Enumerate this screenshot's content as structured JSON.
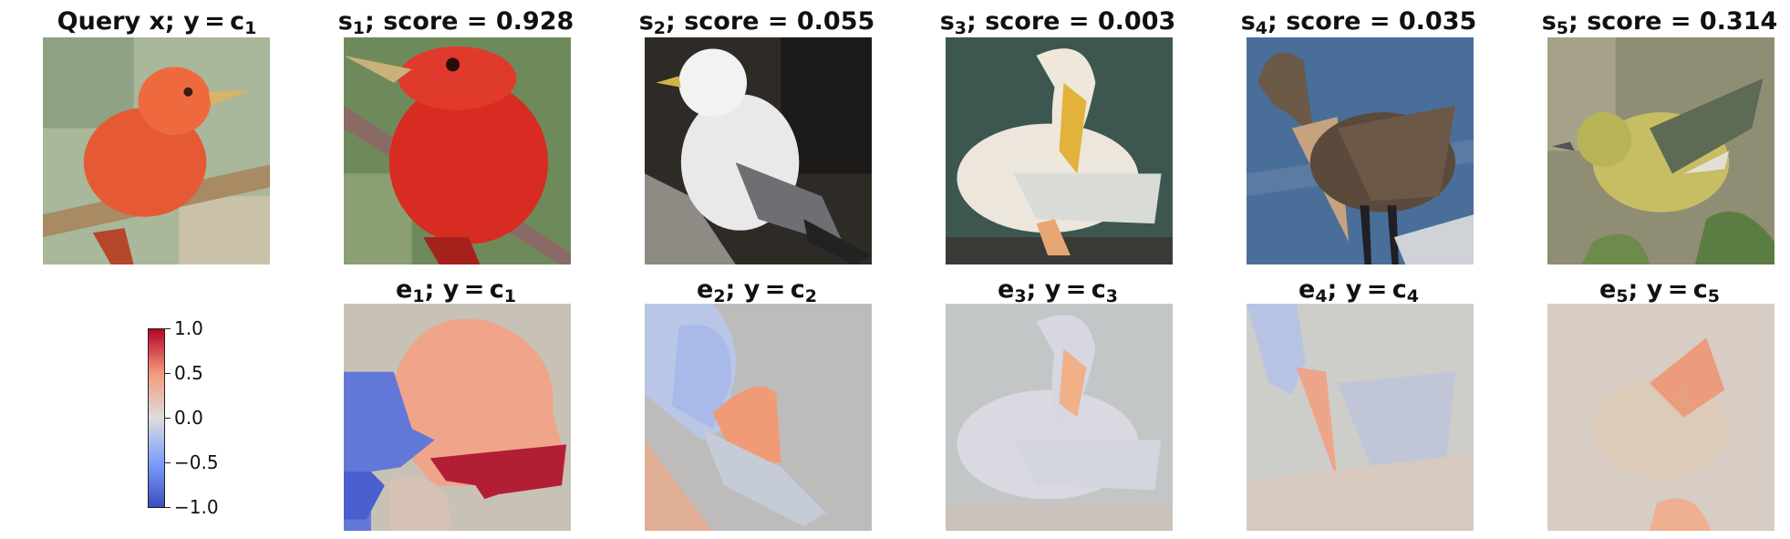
{
  "query": {
    "label": "Query x; y = c",
    "class_index": "1",
    "subject": "red bird on branch"
  },
  "samples": [
    {
      "symbol": "s",
      "index": "1",
      "score_text": "; score = 0.928",
      "score": 0.928,
      "subject": "red tanager"
    },
    {
      "symbol": "s",
      "index": "2",
      "score_text": "; score = 0.055",
      "score": 0.055,
      "subject": "white gull"
    },
    {
      "symbol": "s",
      "index": "3",
      "score_text": "; score = 0.003",
      "score": 0.003,
      "subject": "white pelican preening"
    },
    {
      "symbol": "s",
      "index": "4",
      "score_text": "; score = 0.035",
      "score": 0.035,
      "subject": "brown pelican"
    },
    {
      "symbol": "s",
      "index": "5",
      "score_text": "; score = 0.314",
      "score": 0.314,
      "subject": "yellow warbler"
    }
  ],
  "explanations": [
    {
      "symbol": "e",
      "index": "1",
      "class_text": "; y = c",
      "class_index": "1"
    },
    {
      "symbol": "e",
      "index": "2",
      "class_text": "; y = c",
      "class_index": "2"
    },
    {
      "symbol": "e",
      "index": "3",
      "class_text": "; y = c",
      "class_index": "3"
    },
    {
      "symbol": "e",
      "index": "4",
      "class_text": "; y = c",
      "class_index": "4"
    },
    {
      "symbol": "e",
      "index": "5",
      "class_text": "; y = c",
      "class_index": "5"
    }
  ],
  "colorbar": {
    "colormap": "coolwarm",
    "range": [
      -1.0,
      1.0
    ],
    "ticks": [
      "1.0",
      "0.5",
      "0.0",
      "−0.5",
      "−1.0"
    ]
  },
  "colors": {
    "blue": "#3b4cc0",
    "light_blue": "#7b9ff9",
    "neutral": "#dddddd",
    "salmon": "#f49a7b",
    "red": "#b40426"
  }
}
